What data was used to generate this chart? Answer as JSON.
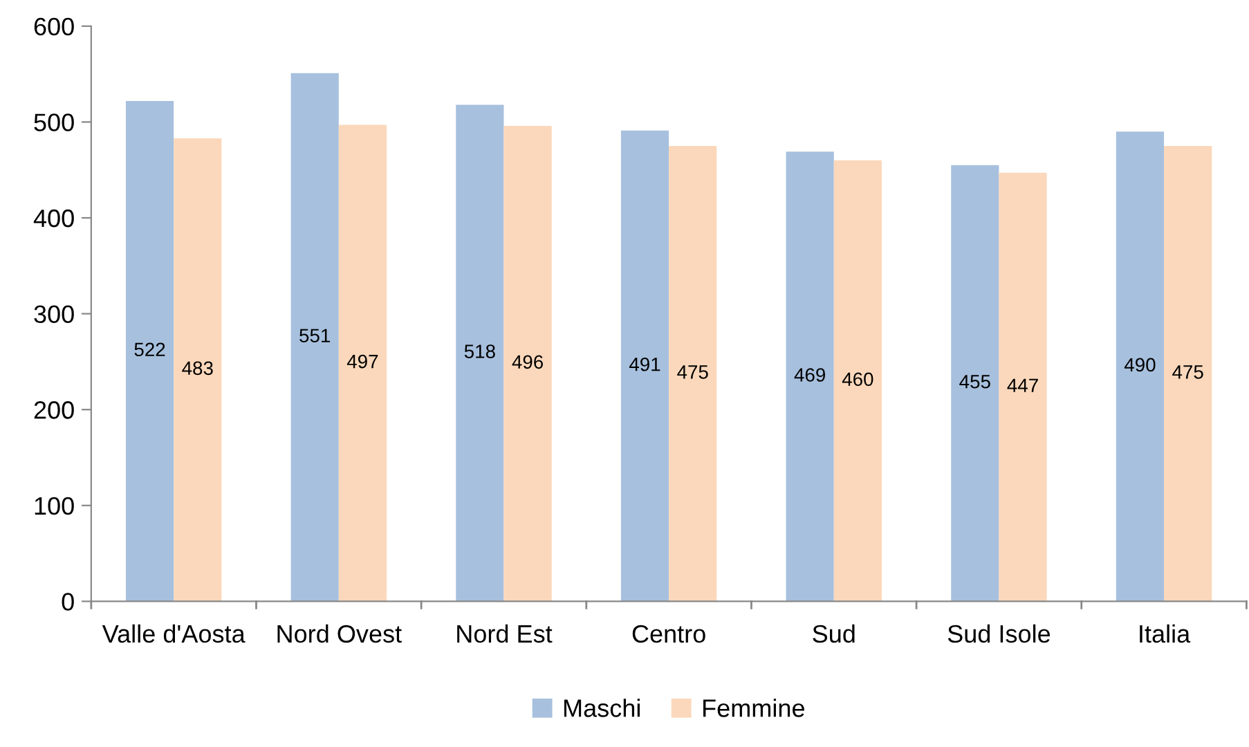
{
  "chart_data": {
    "type": "bar",
    "categories": [
      "Valle d'Aosta",
      "Nord Ovest",
      "Nord Est",
      "Centro",
      "Sud",
      "Sud Isole",
      "Italia"
    ],
    "series": [
      {
        "name": "Maschi",
        "color": "#a7c0de",
        "values": [
          522,
          551,
          518,
          491,
          469,
          455,
          490
        ]
      },
      {
        "name": "Femmine",
        "color": "#fbd8bb",
        "values": [
          483,
          497,
          496,
          475,
          460,
          447,
          475
        ]
      }
    ],
    "ylim": [
      0,
      600
    ],
    "yticks": [
      0,
      100,
      200,
      300,
      400,
      500,
      600
    ],
    "data_labels": true,
    "grid": false,
    "legend": "bottom"
  }
}
